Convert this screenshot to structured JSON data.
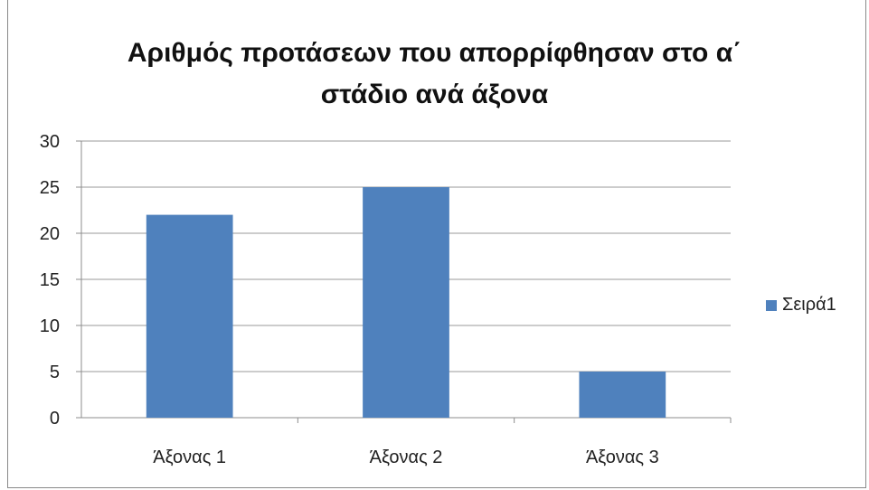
{
  "chart_data": {
    "type": "bar",
    "title_lines": [
      "Αριθμός προτάσεων που απορρίφθησαν στο α΄",
      "στάδιο  ανά άξονα"
    ],
    "categories": [
      "Άξονας 1",
      "Άξονας 2",
      "Άξονας 3"
    ],
    "series": [
      {
        "name": "Σειρά1",
        "values": [
          22,
          25,
          5
        ],
        "color": "#4f81bd"
      }
    ],
    "ylim": [
      0,
      30
    ],
    "yticks": [
      0,
      5,
      10,
      15,
      20,
      25,
      30
    ],
    "grid": true,
    "legend_position": "right"
  }
}
